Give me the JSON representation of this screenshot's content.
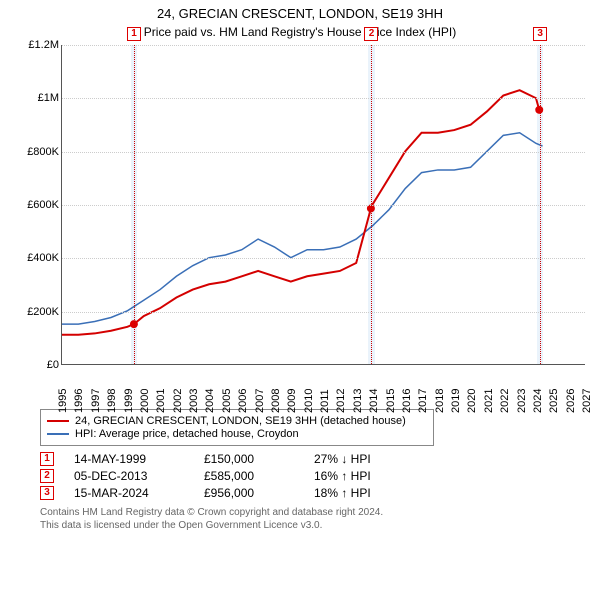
{
  "title_line1": "24, GRECIAN CRESCENT, LONDON, SE19 3HH",
  "title_line2": "Price paid vs. HM Land Registry's House Price Index (HPI)",
  "chart": {
    "type": "line",
    "x_domain": [
      1995,
      2027
    ],
    "y_domain": [
      0,
      1200000
    ],
    "y_ticks": [
      0,
      200000,
      400000,
      600000,
      800000,
      1000000,
      1200000
    ],
    "y_tick_labels": [
      "£0",
      "£200K",
      "£400K",
      "£600K",
      "£800K",
      "£1M",
      "£1.2M"
    ],
    "x_ticks": [
      1995,
      1996,
      1997,
      1998,
      1999,
      2000,
      2001,
      2002,
      2003,
      2004,
      2005,
      2006,
      2007,
      2008,
      2009,
      2010,
      2011,
      2012,
      2013,
      2014,
      2015,
      2016,
      2017,
      2018,
      2019,
      2020,
      2021,
      2022,
      2023,
      2024,
      2025,
      2026,
      2027
    ],
    "grid_color": "#cccccc",
    "background_color": "#ffffff",
    "shade_color": "#eaf3fb",
    "shade_ranges": [
      [
        1999.2,
        1999.6
      ],
      [
        2013.7,
        2014.1
      ],
      [
        2024.0,
        2024.4
      ]
    ],
    "vline_color": "#cc0000",
    "vline_x": [
      1999.4,
      2013.9,
      2024.2
    ],
    "markers_top_y": -18,
    "series": [
      {
        "name": "property",
        "color": "#d40000",
        "width": 2,
        "points": [
          [
            1995,
            110000
          ],
          [
            1996,
            110000
          ],
          [
            1997,
            115000
          ],
          [
            1998,
            125000
          ],
          [
            1999,
            140000
          ],
          [
            1999.4,
            150000
          ],
          [
            2000,
            180000
          ],
          [
            2001,
            210000
          ],
          [
            2002,
            250000
          ],
          [
            2003,
            280000
          ],
          [
            2004,
            300000
          ],
          [
            2005,
            310000
          ],
          [
            2006,
            330000
          ],
          [
            2007,
            350000
          ],
          [
            2008,
            330000
          ],
          [
            2009,
            310000
          ],
          [
            2010,
            330000
          ],
          [
            2011,
            340000
          ],
          [
            2012,
            350000
          ],
          [
            2013,
            380000
          ],
          [
            2013.9,
            585000
          ],
          [
            2014,
            600000
          ],
          [
            2015,
            700000
          ],
          [
            2016,
            800000
          ],
          [
            2017,
            870000
          ],
          [
            2018,
            870000
          ],
          [
            2019,
            880000
          ],
          [
            2020,
            900000
          ],
          [
            2021,
            950000
          ],
          [
            2022,
            1010000
          ],
          [
            2023,
            1030000
          ],
          [
            2024,
            1000000
          ],
          [
            2024.2,
            956000
          ],
          [
            2024.4,
            955000
          ]
        ],
        "sale_points": [
          [
            1999.4,
            150000
          ],
          [
            2013.9,
            585000
          ],
          [
            2024.2,
            956000
          ]
        ]
      },
      {
        "name": "hpi",
        "color": "#3a6fb7",
        "width": 1.5,
        "points": [
          [
            1995,
            150000
          ],
          [
            1996,
            150000
          ],
          [
            1997,
            160000
          ],
          [
            1998,
            175000
          ],
          [
            1999,
            200000
          ],
          [
            2000,
            240000
          ],
          [
            2001,
            280000
          ],
          [
            2002,
            330000
          ],
          [
            2003,
            370000
          ],
          [
            2004,
            400000
          ],
          [
            2005,
            410000
          ],
          [
            2006,
            430000
          ],
          [
            2007,
            470000
          ],
          [
            2008,
            440000
          ],
          [
            2009,
            400000
          ],
          [
            2010,
            430000
          ],
          [
            2011,
            430000
          ],
          [
            2012,
            440000
          ],
          [
            2013,
            470000
          ],
          [
            2014,
            520000
          ],
          [
            2015,
            580000
          ],
          [
            2016,
            660000
          ],
          [
            2017,
            720000
          ],
          [
            2018,
            730000
          ],
          [
            2019,
            730000
          ],
          [
            2020,
            740000
          ],
          [
            2021,
            800000
          ],
          [
            2022,
            860000
          ],
          [
            2023,
            870000
          ],
          [
            2024,
            830000
          ],
          [
            2024.4,
            820000
          ]
        ]
      }
    ]
  },
  "legend": {
    "rows": [
      {
        "color": "#d40000",
        "label": "24, GRECIAN CRESCENT, LONDON, SE19 3HH (detached house)"
      },
      {
        "color": "#3a6fb7",
        "label": "HPI: Average price, detached house, Croydon"
      }
    ]
  },
  "sales": [
    {
      "n": "1",
      "date": "14-MAY-1999",
      "price": "£150,000",
      "delta": "27% ↓ HPI"
    },
    {
      "n": "2",
      "date": "05-DEC-2013",
      "price": "£585,000",
      "delta": "16% ↑ HPI"
    },
    {
      "n": "3",
      "date": "15-MAR-2024",
      "price": "£956,000",
      "delta": "18% ↑ HPI"
    }
  ],
  "footer_l1": "Contains HM Land Registry data © Crown copyright and database right 2024.",
  "footer_l2": "This data is licensed under the Open Government Licence v3.0."
}
